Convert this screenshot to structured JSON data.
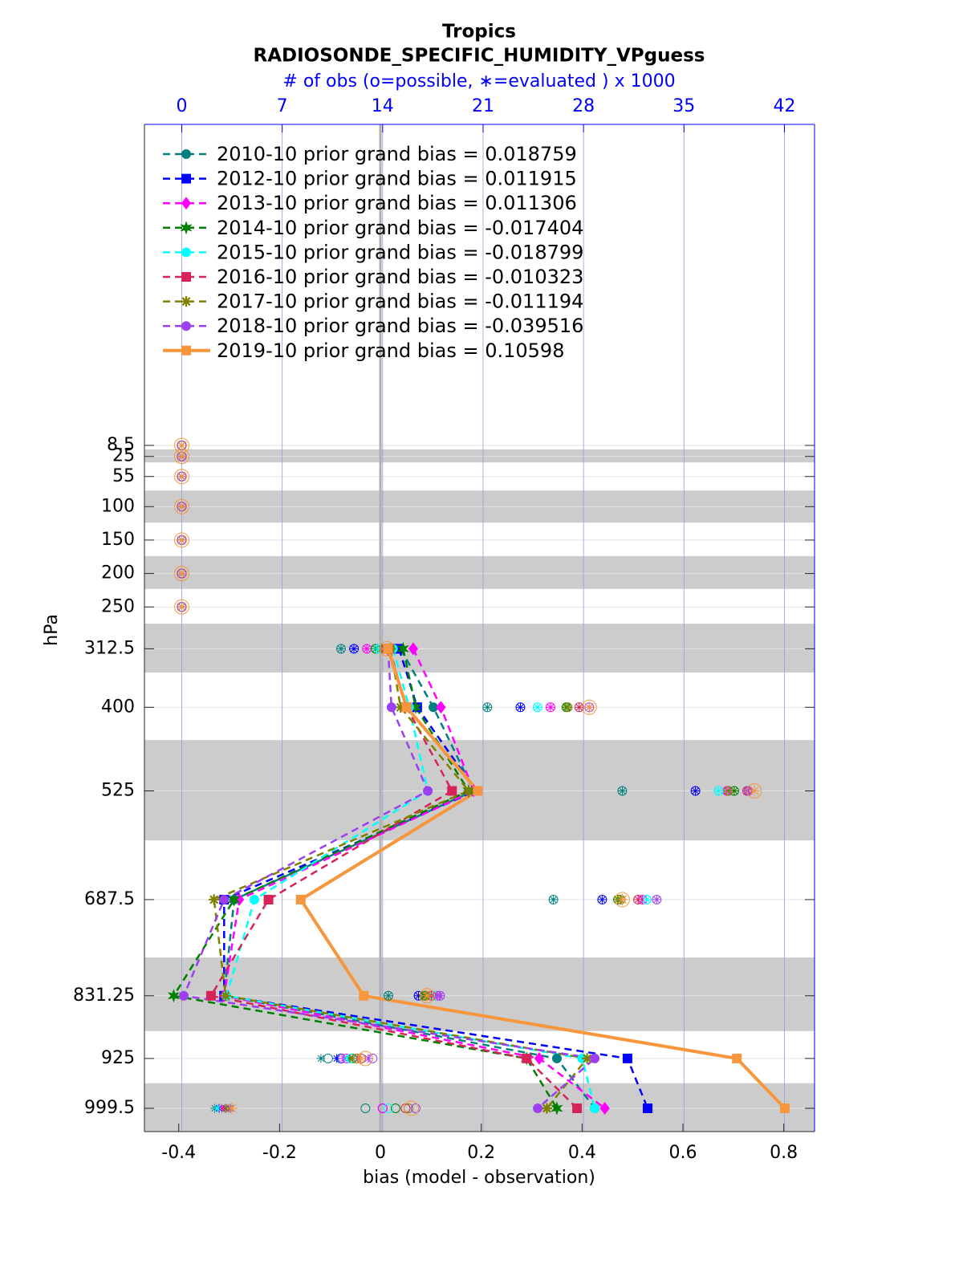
{
  "chart_data": {
    "type": "line",
    "title": "Tropics",
    "subtitle": "RADIOSONDE_SPECIFIC_HUMIDITY_VPguess",
    "x2_label": "# of obs (o=possible, ∗=evaluated ) x 1000",
    "xlabel": "bias (model - observation)",
    "ylabel": "hPa",
    "y": [
      8.5,
      25,
      55,
      100,
      150,
      200,
      250,
      312.5,
      400,
      525,
      687.5,
      831.25,
      925,
      999.5
    ],
    "xlim": [
      -0.468,
      0.861
    ],
    "xticks": [
      -0.4,
      -0.2,
      0,
      0.2,
      0.4,
      0.6,
      0.8
    ],
    "x2lim": [
      -2.6,
      44.1
    ],
    "x2ticks": [
      0,
      7,
      14,
      21,
      28,
      35,
      42
    ],
    "ylim": [
      1034.3,
      -471.4
    ],
    "yticks": [
      8.5,
      25,
      55,
      100,
      150,
      200,
      250,
      312.5,
      400,
      525,
      687.5,
      831.25,
      925,
      999.5
    ],
    "shaded_layers": [
      [
        14.5,
        34
      ],
      [
        76,
        124
      ],
      [
        174,
        223
      ],
      [
        275,
        348
      ],
      [
        449,
        599
      ],
      [
        774,
        884
      ],
      [
        962,
        1037
      ]
    ],
    "grid": true,
    "legend": "upper left",
    "series": [
      {
        "name": "2010-10 prior grand bias = 0.018759",
        "color": "#008080",
        "marker": "circle",
        "line_style": "dashed",
        "values": [
          null,
          null,
          null,
          null,
          null,
          null,
          null,
          0.04,
          0.105,
          0.185,
          -0.29,
          -0.31,
          0.35,
          0.425
        ],
        "obs_possible": [
          0,
          0,
          0,
          0,
          0,
          0,
          0,
          11.1,
          21.3,
          30.7,
          25.9,
          14.4,
          10.2,
          12.8
        ],
        "obs_evaluated": [
          0,
          0,
          0,
          0,
          0,
          0,
          0,
          11.1,
          21.3,
          30.7,
          25.9,
          14.4,
          9.7,
          2.3
        ]
      },
      {
        "name": "2012-10 prior grand bias = 0.011915",
        "color": "#0000ff",
        "marker": "square",
        "line_style": "dashed",
        "values": [
          null,
          null,
          null,
          null,
          null,
          null,
          null,
          0.037,
          0.073,
          0.19,
          -0.31,
          -0.31,
          0.49,
          0.53
        ],
        "obs_possible": [
          0,
          0,
          0,
          0,
          0,
          0,
          0,
          12.0,
          23.6,
          35.8,
          29.3,
          16.5,
          11.1,
          14.0
        ],
        "obs_evaluated": [
          0,
          0,
          0,
          0,
          0,
          0,
          0,
          12.0,
          23.6,
          35.8,
          29.3,
          16.5,
          10.8,
          2.6
        ]
      },
      {
        "name": "2013-10 prior grand bias = 0.011306",
        "color": "#ff00ff",
        "marker": "diamond",
        "line_style": "dashed",
        "values": [
          null,
          null,
          null,
          null,
          null,
          null,
          null,
          0.065,
          0.12,
          0.185,
          -0.28,
          -0.31,
          0.315,
          0.445
        ],
        "obs_possible": [
          0,
          0,
          0,
          0,
          0,
          0,
          0,
          12.9,
          25.7,
          38.0,
          32.1,
          17.8,
          11.5,
          14.0
        ],
        "obs_evaluated": [
          0,
          0,
          0,
          0,
          0,
          0,
          0,
          12.9,
          25.7,
          38.0,
          32.1,
          17.8,
          11.3,
          2.8
        ]
      },
      {
        "name": "2014-10 prior grand bias = -0.017404",
        "color": "#008000",
        "marker": "hexagram",
        "line_style": "dashed",
        "values": [
          null,
          null,
          null,
          null,
          null,
          null,
          null,
          0.045,
          0.07,
          0.175,
          -0.29,
          -0.41,
          0.29,
          0.35
        ],
        "obs_possible": [
          0,
          0,
          0,
          0,
          0,
          0,
          0,
          13.5,
          26.8,
          38.5,
          30.4,
          16.9,
          11.9,
          14.9
        ],
        "obs_evaluated": [
          0,
          0,
          0,
          0,
          0,
          0,
          0,
          13.5,
          26.8,
          38.5,
          30.4,
          16.9,
          11.7,
          3.1
        ]
      },
      {
        "name": "2015-10 prior grand bias = -0.018799",
        "color": "#00ffff",
        "marker": "circle",
        "line_style": "dashed",
        "values": [
          null,
          null,
          null,
          null,
          null,
          null,
          null,
          0.025,
          0.057,
          0.094,
          -0.25,
          -0.305,
          0.4,
          0.425
        ],
        "obs_possible": [
          0,
          0,
          0,
          0,
          0,
          0,
          0,
          13.7,
          24.8,
          37.4,
          32.4,
          17.6,
          11.8,
          14.4
        ],
        "obs_evaluated": [
          0,
          0,
          0,
          0,
          0,
          0,
          0,
          13.7,
          24.8,
          37.4,
          32.4,
          17.6,
          11.5,
          2.5
        ]
      },
      {
        "name": "2016-10 prior grand bias = -0.010323",
        "color": "#d6245a",
        "marker": "square",
        "line_style": "dashed",
        "values": [
          null,
          null,
          null,
          null,
          null,
          null,
          null,
          0.018,
          0.052,
          0.142,
          -0.222,
          -0.336,
          0.29,
          0.39
        ],
        "obs_possible": [
          0,
          0,
          0,
          0,
          0,
          0,
          0,
          14.1,
          27.7,
          39.4,
          31.8,
          17.4,
          12.5,
          15.6
        ],
        "obs_evaluated": [
          0,
          0,
          0,
          0,
          0,
          0,
          0,
          14.1,
          27.7,
          39.4,
          31.8,
          17.4,
          12.3,
          3.0
        ]
      },
      {
        "name": "2017-10 prior grand bias = -0.011194",
        "color": "#808000",
        "marker": "asterisk",
        "line_style": "dashed",
        "values": [
          null,
          null,
          null,
          null,
          null,
          null,
          null,
          0.02,
          0.04,
          0.175,
          -0.33,
          -0.307,
          0.41,
          0.33
        ],
        "obs_possible": [
          0,
          0,
          0,
          0,
          0,
          0,
          0,
          14.2,
          26.9,
          38.1,
          30.6,
          17.0,
          12.2,
          15.8
        ],
        "obs_evaluated": [
          0,
          0,
          0,
          0,
          0,
          0,
          0,
          14.2,
          26.9,
          38.1,
          30.6,
          17.0,
          11.9,
          3.3
        ]
      },
      {
        "name": "2018-10 prior grand bias = -0.039516",
        "color": "#9b3ff0",
        "marker": "circle",
        "line_style": "dashed",
        "values": [
          null,
          null,
          null,
          null,
          null,
          null,
          null,
          0.015,
          0.022,
          0.094,
          -0.31,
          -0.39,
          0.425,
          0.312
        ],
        "obs_possible": [
          0,
          0,
          0,
          0,
          0,
          0,
          0,
          14.3,
          28.4,
          39.5,
          33.1,
          18.0,
          13.3,
          16.3
        ],
        "obs_evaluated": [
          0,
          0,
          0,
          0,
          0,
          0,
          0,
          14.3,
          28.4,
          39.5,
          33.1,
          18.0,
          13.0,
          3.4
        ]
      },
      {
        "name": "2019-10 prior grand bias = 0.10598",
        "color": "#f7963c",
        "marker": "square",
        "line_style": "solid",
        "values": [
          null,
          null,
          null,
          null,
          null,
          null,
          null,
          0.015,
          0.052,
          0.193,
          -0.158,
          -0.033,
          0.707,
          0.802
        ],
        "obs_possible": [
          0,
          0,
          0,
          0,
          0,
          0,
          0,
          14.3,
          28.4,
          39.9,
          30.7,
          17.1,
          12.8,
          16.0
        ],
        "obs_evaluated": [
          0,
          0,
          0,
          0,
          0,
          0,
          0,
          14.3,
          28.4,
          39.9,
          30.7,
          17.1,
          12.5,
          3.5
        ]
      }
    ]
  }
}
